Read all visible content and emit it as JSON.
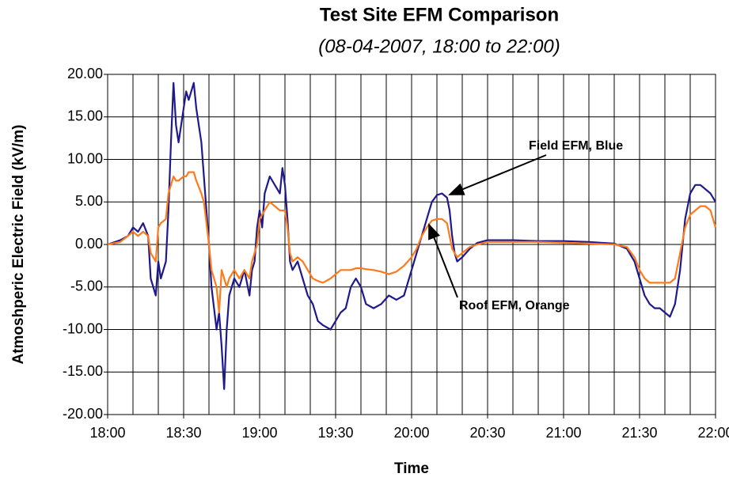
{
  "chart_data": {
    "type": "line",
    "title": "Test Site EFM Comparison",
    "subtitle": "(08-04-2007, 18:00 to 22:00)",
    "xlabel": "Time",
    "ylabel": "Atmoshperic Electric Field (kV/m)",
    "x": [
      1080,
      1085,
      1088,
      1090,
      1092,
      1094,
      1096,
      1097,
      1099,
      1100,
      1101,
      1103,
      1104,
      1105,
      1106,
      1107,
      1108,
      1110,
      1111,
      1112,
      1114,
      1115,
      1117,
      1118,
      1120,
      1121,
      1123,
      1124,
      1125,
      1126,
      1127,
      1128,
      1130,
      1132,
      1134,
      1136,
      1137,
      1138,
      1139,
      1140,
      1141,
      1142,
      1144,
      1146,
      1148,
      1149,
      1150,
      1151,
      1152,
      1153,
      1155,
      1157,
      1159,
      1161,
      1163,
      1165,
      1168,
      1170,
      1172,
      1174,
      1176,
      1178,
      1180,
      1182,
      1185,
      1188,
      1191,
      1194,
      1197,
      1200,
      1202,
      1204,
      1206,
      1208,
      1210,
      1212,
      1214,
      1215,
      1216,
      1217,
      1218,
      1220,
      1223,
      1226,
      1230,
      1240,
      1250,
      1260,
      1270,
      1280,
      1285,
      1288,
      1290,
      1292,
      1294,
      1296,
      1298,
      1300,
      1302,
      1304,
      1306,
      1308,
      1310,
      1312,
      1314,
      1316,
      1318,
      1320
    ],
    "series": [
      {
        "name": "Field EFM, Blue",
        "color": "#1f1a8c",
        "values": [
          0,
          0.5,
          1,
          2,
          1.5,
          2.5,
          1,
          -4,
          -6,
          -2,
          -4,
          -2,
          4,
          12,
          19,
          14,
          12,
          16,
          18,
          17,
          19,
          16,
          12,
          8,
          0,
          -5,
          -10,
          -8,
          -12,
          -17,
          -10,
          -6,
          -4,
          -5,
          -3,
          -6,
          -3,
          -2,
          2,
          4,
          2,
          6,
          8,
          7,
          6,
          9,
          7,
          3,
          -2,
          -3,
          -2,
          -4,
          -6,
          -7,
          -9,
          -9.5,
          -10,
          -9,
          -8,
          -7.5,
          -5,
          -4,
          -5,
          -7,
          -7.5,
          -7,
          -6,
          -6.5,
          -6,
          -3,
          -1,
          1,
          3,
          5,
          5.8,
          6,
          5.5,
          4,
          1,
          -1,
          -2,
          -1.5,
          -0.5,
          0.2,
          0.5,
          0.5,
          0.4,
          0.4,
          0.3,
          0.1,
          -0.5,
          -2,
          -4,
          -6,
          -7,
          -7.5,
          -7.5,
          -8,
          -8.5,
          -7,
          -3,
          3,
          6,
          7,
          7,
          6.5,
          6,
          5
        ]
      },
      {
        "name": "Roof EFM, Orange",
        "color": "#ff7a1a",
        "values": [
          0,
          0.3,
          1,
          1.5,
          1,
          1.5,
          1,
          -1,
          -2,
          2,
          2.5,
          3,
          6,
          7,
          8,
          7.5,
          7.5,
          8,
          8,
          8.5,
          8.5,
          7.5,
          6,
          5,
          0,
          -3,
          -5,
          -8,
          -3,
          -4,
          -5,
          -4,
          -3,
          -4,
          -3,
          -4,
          -2,
          -1,
          0,
          3,
          3.5,
          4,
          5,
          4.5,
          4,
          4,
          4,
          2,
          -1,
          -2,
          -1.5,
          -2,
          -3,
          -4,
          -4.3,
          -4.5,
          -4,
          -3.5,
          -3,
          -3,
          -3,
          -2.8,
          -2.8,
          -2.9,
          -3,
          -3.2,
          -3.5,
          -3.2,
          -2.5,
          -1.5,
          -0.5,
          1,
          2,
          2.8,
          3,
          3,
          2.5,
          1,
          -0.5,
          -1,
          -1.5,
          -1,
          -0.3,
          0,
          0.3,
          0.3,
          0.3,
          0.2,
          0.1,
          0,
          -0.3,
          -1.5,
          -3,
          -4,
          -4.5,
          -4.5,
          -4.5,
          -4.5,
          -4.5,
          -4,
          -1,
          2,
          3.5,
          4,
          4.5,
          4.5,
          4,
          2
        ]
      }
    ],
    "xlim": [
      1080,
      1320
    ],
    "xticks": [
      {
        "value": 1080,
        "label": "18:00"
      },
      {
        "value": 1110,
        "label": "18:30"
      },
      {
        "value": 1140,
        "label": "19:00"
      },
      {
        "value": 1170,
        "label": "19:30"
      },
      {
        "value": 1200,
        "label": "20:00"
      },
      {
        "value": 1230,
        "label": "20:30"
      },
      {
        "value": 1260,
        "label": "21:00"
      },
      {
        "value": 1290,
        "label": "21:30"
      },
      {
        "value": 1320,
        "label": "22:00"
      }
    ],
    "x_minor_grid": [
      1090,
      1100,
      1120,
      1130,
      1150,
      1160,
      1180,
      1190,
      1210,
      1220,
      1240,
      1250,
      1270,
      1280,
      1300,
      1310
    ],
    "ylim": [
      -20,
      20
    ],
    "yticks": [
      {
        "value": -20,
        "label": "-20.00"
      },
      {
        "value": -15,
        "label": "-15.00"
      },
      {
        "value": -10,
        "label": "-10.00"
      },
      {
        "value": -5,
        "label": "-5.00"
      },
      {
        "value": 0,
        "label": "0.00"
      },
      {
        "value": 5,
        "label": "5.00"
      },
      {
        "value": 10,
        "label": "10.00"
      },
      {
        "value": 15,
        "label": "15.00"
      },
      {
        "value": 20,
        "label": "20.00"
      }
    ],
    "grid": true,
    "annotations": [
      "Field EFM, Blue",
      "Roof EFM, Orange"
    ]
  }
}
